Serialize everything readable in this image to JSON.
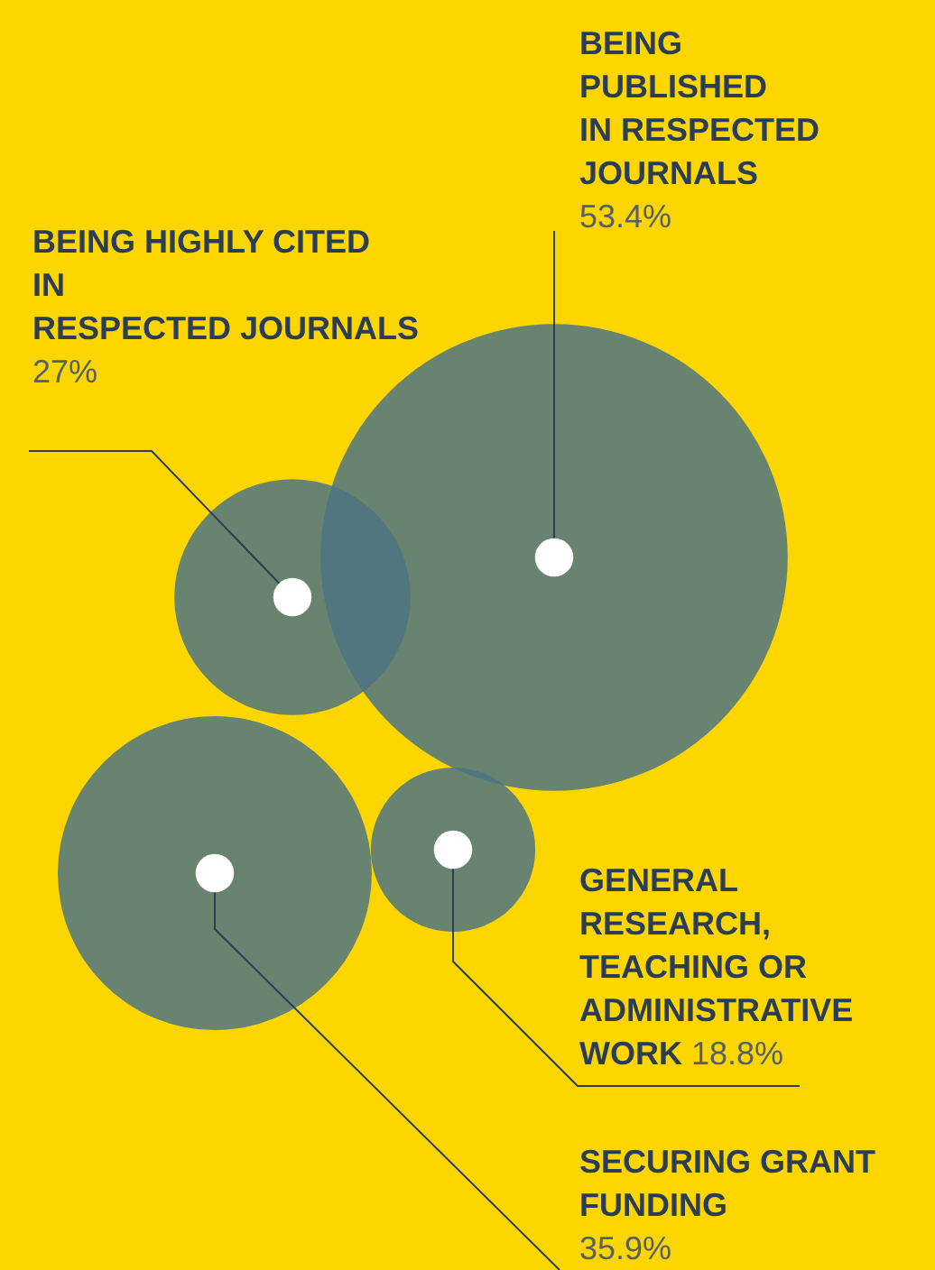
{
  "chart_data": {
    "type": "other",
    "categories": [
      "BEING PUBLISHED IN RESPECTED JOURNALS",
      "BEING HIGHLY CITED IN RESPECTED JOURNALS",
      "GENERAL RESEARCH, TEACHING OR ADMINISTRATIVE WORK",
      "SECURING GRANT FUNDING"
    ],
    "values": [
      53.4,
      27,
      18.8,
      35.9
    ],
    "value_labels": [
      "53.4%",
      "27%",
      "18.8%",
      "35.9%"
    ],
    "color": "#4d7482"
  }
}
